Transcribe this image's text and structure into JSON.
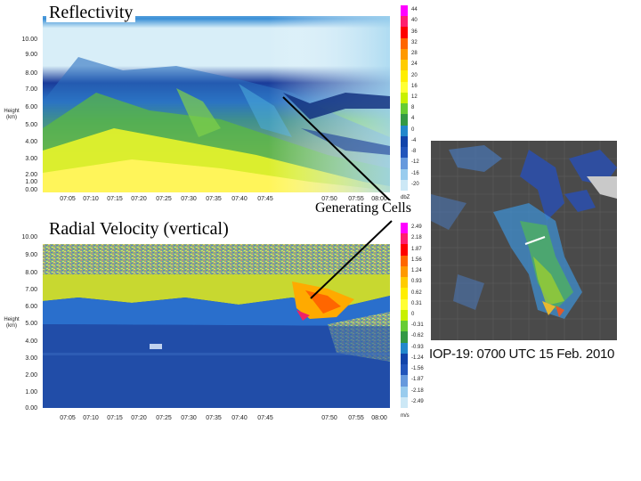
{
  "panels": {
    "reflectivity": {
      "title": "Reflectivity",
      "y_ticks": [
        "10.00",
        "9.00",
        "8.00",
        "7.00",
        "6.00",
        "5.00",
        "4.00",
        "3.00",
        "2.00",
        "1.00",
        "0.00"
      ],
      "x_ticks": [
        "07:05",
        "07:10",
        "07:15",
        "07:20",
        "07:25",
        "07:30",
        "07:35",
        "07:40",
        "07:45",
        "07:50",
        "07:55",
        "08:00"
      ],
      "y_title": [
        "Height",
        "(km)"
      ],
      "colorbar_values": [
        "44",
        "40",
        "36",
        "32",
        "28",
        "24",
        "20",
        "16",
        "12",
        "8",
        "4",
        "0",
        "-4",
        "-8",
        "-12",
        "-16",
        "-20"
      ],
      "colorbar_unit": "dbZ"
    },
    "velocity": {
      "title": "Radial Velocity (vertical)",
      "y_ticks": [
        "10.00",
        "9.00",
        "8.00",
        "7.00",
        "6.00",
        "5.00",
        "4.00",
        "3.00",
        "2.00",
        "1.00",
        "0.00"
      ],
      "x_ticks": [
        "07:05",
        "07:10",
        "07:15",
        "07:20",
        "07:25",
        "07:30",
        "07:35",
        "07:40",
        "07:45",
        "07:50",
        "07:55",
        "08:00"
      ],
      "y_title": [
        "Height",
        "(km)"
      ],
      "colorbar_values": [
        "2.49",
        "2.18",
        "1.87",
        "1.56",
        "1.24",
        "0.93",
        "0.62",
        "0.31",
        "0",
        "-0.31",
        "-0.62",
        "-0.93",
        "-1.24",
        "-1.56",
        "-1.87",
        "-2.18",
        "-2.49"
      ],
      "colorbar_unit": "m/s"
    }
  },
  "annotation": {
    "label": "Generating Cells"
  },
  "map": {
    "caption": "IOP-19: 0700 UTC 15 Feb. 2010"
  },
  "colors": {
    "reflectivity_scale": [
      "#ff00ff",
      "#ff1e6e",
      "#ff0000",
      "#ff6600",
      "#ff9900",
      "#ffcc00",
      "#ffee00",
      "#ffff33",
      "#c8f000",
      "#66cc33",
      "#339944",
      "#2288cc",
      "#1144aa",
      "#2255bb",
      "#6699dd",
      "#99ccee",
      "#cce8f6"
    ],
    "velocity_scale": [
      "#ff00ff",
      "#ff1e6e",
      "#ff0000",
      "#ff6600",
      "#ff9900",
      "#ffcc00",
      "#ffee00",
      "#ffff33",
      "#c8f000",
      "#66cc33",
      "#339944",
      "#2288cc",
      "#1144aa",
      "#2255bb",
      "#6699dd",
      "#99ccee",
      "#cce8f6"
    ]
  }
}
